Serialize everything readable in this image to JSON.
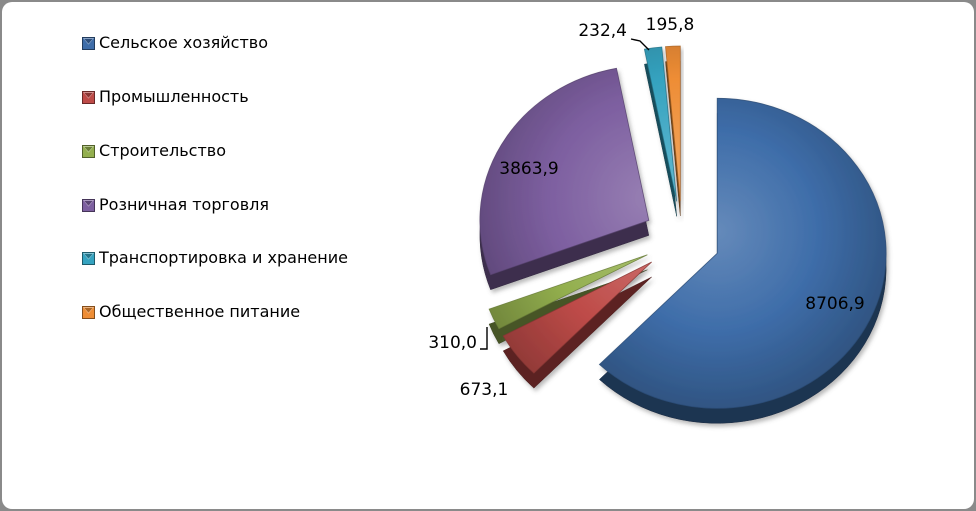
{
  "window": {
    "outer_border_color": "#8a8a8a",
    "chart_background": "#ffffff"
  },
  "chart_data": {
    "type": "pie",
    "style": "3d-exploded",
    "title": "",
    "legend_position": "left",
    "start_angle_deg": 0,
    "direction": "clockwise",
    "grid": false,
    "categories": [
      "Сельское хозяйство",
      "Промышленность",
      "Строительство",
      "Розничная торговля",
      "Транспортировка и хранение",
      "Общественное питание"
    ],
    "values": [
      8706.9,
      673.1,
      310.0,
      3863.9,
      232.4,
      195.8
    ],
    "value_labels": [
      "8706,9",
      "673,1",
      "310,0",
      "3863,9",
      "232,4",
      "195,8"
    ],
    "colors": [
      "#3E6DA9",
      "#BE4B48",
      "#93AF4E",
      "#7D5FA0",
      "#35A3C0",
      "#EE8D35"
    ],
    "total": 13982.1,
    "label_text_color": "#000000"
  }
}
